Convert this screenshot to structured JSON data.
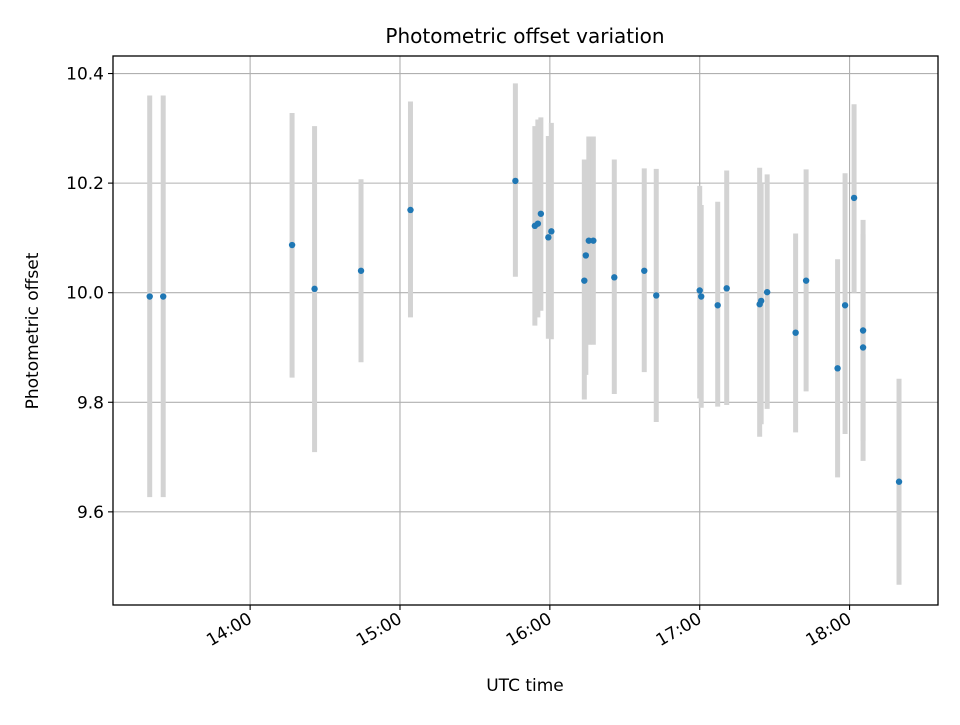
{
  "chart_data": {
    "type": "scatter",
    "title": "Photometric offset variation",
    "xlabel": "UTC time",
    "ylabel": "Photometric offset",
    "x_unit": "UTC time of day (hours)",
    "xlim": [
      13.085,
      18.59
    ],
    "ylim": [
      9.43,
      10.432
    ],
    "grid": true,
    "x_ticks": [
      {
        "value": 14,
        "label": "14:00"
      },
      {
        "value": 15,
        "label": "15:00"
      },
      {
        "value": 16,
        "label": "16:00"
      },
      {
        "value": 17,
        "label": "17:00"
      },
      {
        "value": 18,
        "label": "18:00"
      }
    ],
    "y_ticks": [
      {
        "value": 9.6,
        "label": "9.6"
      },
      {
        "value": 9.8,
        "label": "9.8"
      },
      {
        "value": 10.0,
        "label": "10.0"
      },
      {
        "value": 10.2,
        "label": "10.2"
      },
      {
        "value": 10.4,
        "label": "10.4"
      }
    ],
    "colors": {
      "point": "#1f77b4",
      "errorbar": "#d3d3d3",
      "grid": "#b0b0b0"
    },
    "points": [
      {
        "x": 13.33,
        "y": 9.993,
        "ylo": 9.627,
        "yhi": 10.36
      },
      {
        "x": 13.42,
        "y": 9.993,
        "ylo": 9.627,
        "yhi": 10.36
      },
      {
        "x": 14.28,
        "y": 10.087,
        "ylo": 9.845,
        "yhi": 10.328
      },
      {
        "x": 14.43,
        "y": 10.007,
        "ylo": 9.709,
        "yhi": 10.304
      },
      {
        "x": 14.74,
        "y": 10.04,
        "ylo": 9.873,
        "yhi": 10.207
      },
      {
        "x": 15.07,
        "y": 10.151,
        "ylo": 9.955,
        "yhi": 10.349
      },
      {
        "x": 15.77,
        "y": 10.204,
        "ylo": 10.029,
        "yhi": 10.382
      },
      {
        "x": 15.9,
        "y": 10.122,
        "ylo": 9.94,
        "yhi": 10.304
      },
      {
        "x": 15.92,
        "y": 10.126,
        "ylo": 9.955,
        "yhi": 10.316
      },
      {
        "x": 15.94,
        "y": 10.144,
        "ylo": 9.967,
        "yhi": 10.32
      },
      {
        "x": 15.99,
        "y": 10.101,
        "ylo": 9.916,
        "yhi": 10.286
      },
      {
        "x": 16.01,
        "y": 10.112,
        "ylo": 9.915,
        "yhi": 10.31
      },
      {
        "x": 16.23,
        "y": 10.022,
        "ylo": 9.805,
        "yhi": 10.243
      },
      {
        "x": 16.24,
        "y": 10.068,
        "ylo": 9.85,
        "yhi": 10.2
      },
      {
        "x": 16.26,
        "y": 10.095,
        "ylo": 9.905,
        "yhi": 10.285
      },
      {
        "x": 16.29,
        "y": 10.095,
        "ylo": 9.905,
        "yhi": 10.285
      },
      {
        "x": 16.43,
        "y": 10.028,
        "ylo": 9.815,
        "yhi": 10.243
      },
      {
        "x": 16.63,
        "y": 10.04,
        "ylo": 9.855,
        "yhi": 10.227
      },
      {
        "x": 16.71,
        "y": 9.995,
        "ylo": 9.764,
        "yhi": 10.226
      },
      {
        "x": 17.0,
        "y": 10.004,
        "ylo": 9.807,
        "yhi": 10.195
      },
      {
        "x": 17.01,
        "y": 9.993,
        "ylo": 9.79,
        "yhi": 10.16
      },
      {
        "x": 17.12,
        "y": 9.977,
        "ylo": 9.792,
        "yhi": 10.166
      },
      {
        "x": 17.18,
        "y": 10.008,
        "ylo": 9.795,
        "yhi": 10.223
      },
      {
        "x": 17.4,
        "y": 9.979,
        "ylo": 9.737,
        "yhi": 10.228
      },
      {
        "x": 17.41,
        "y": 9.985,
        "ylo": 9.76,
        "yhi": 10.2
      },
      {
        "x": 17.45,
        "y": 10.001,
        "ylo": 9.788,
        "yhi": 10.216
      },
      {
        "x": 17.64,
        "y": 9.927,
        "ylo": 9.745,
        "yhi": 10.108
      },
      {
        "x": 17.71,
        "y": 10.022,
        "ylo": 9.82,
        "yhi": 10.225
      },
      {
        "x": 17.92,
        "y": 9.862,
        "ylo": 9.663,
        "yhi": 10.061
      },
      {
        "x": 17.97,
        "y": 9.977,
        "ylo": 9.742,
        "yhi": 10.218
      },
      {
        "x": 18.03,
        "y": 10.173,
        "ylo": 10.0,
        "yhi": 10.344
      },
      {
        "x": 18.09,
        "y": 9.931,
        "ylo": 9.73,
        "yhi": 10.133
      },
      {
        "x": 18.09,
        "y": 9.9,
        "ylo": 9.693,
        "yhi": 10.107
      },
      {
        "x": 18.33,
        "y": 9.655,
        "ylo": 9.467,
        "yhi": 9.843
      }
    ]
  }
}
